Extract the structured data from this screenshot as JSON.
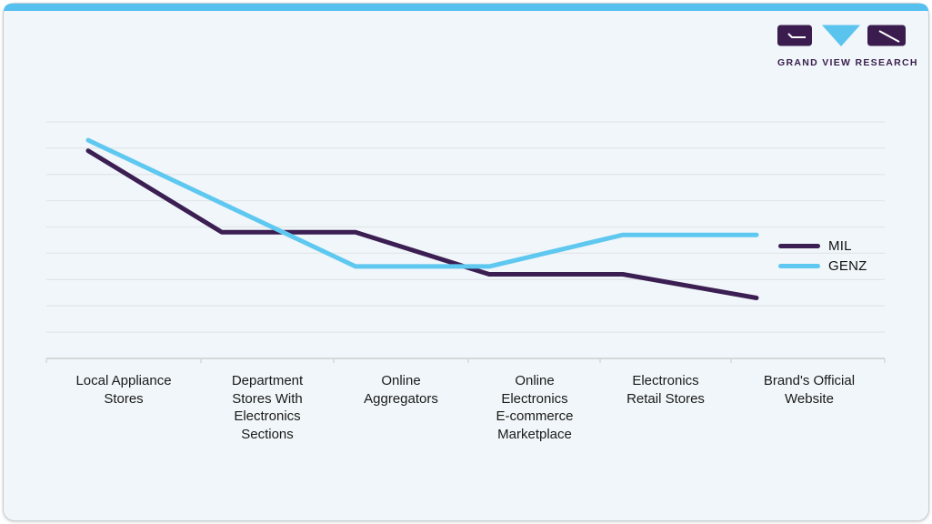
{
  "colors": {
    "brand_purple": "#3a1d4e",
    "brand_blue": "#5ac4ee",
    "card_bg": "#f0f6f9",
    "card_border": "#c9ced3",
    "top_bar": "#56c1ee",
    "gridline": "#e3e7ea",
    "axis": "#d4d8db",
    "label_text": "#1a1a1a"
  },
  "logo": {
    "text": "GRAND VIEW RESEARCH"
  },
  "xaxis": {
    "labels": [
      "Local Appliance\nStores",
      "Department\nStores With\nElectronics\nSections",
      "Online\nAggregators",
      "Online\nElectronics\nE-commerce\nMarketplace",
      "Electronics\nRetail Stores",
      "Brand's Official\nWebsite"
    ]
  },
  "chart_data": {
    "type": "line",
    "title": "",
    "xlabel": "",
    "ylabel": "",
    "categories": [
      "Local Appliance Stores",
      "Department Stores With Electronics Sections",
      "Online Aggregators",
      "Online Electronics E-commerce Marketplace",
      "Electronics Retail Stores",
      "Brand's Official Website"
    ],
    "series": [
      {
        "name": "MIL",
        "color": "#3b1e52",
        "values": [
          7.9,
          4.8,
          4.8,
          3.2,
          3.2,
          2.3
        ]
      },
      {
        "name": "GENZ",
        "color": "#5fc8f0",
        "values": [
          8.3,
          5.9,
          3.5,
          3.5,
          4.7,
          4.7
        ]
      }
    ],
    "ylim": [
      0,
      9.8
    ],
    "y_axis_tick_labels_visible": false,
    "gridlines": "horizontal only, unlabeled, spaced 1 unit apart (values estimated in gridline units)",
    "legend_position": "right-inside"
  }
}
